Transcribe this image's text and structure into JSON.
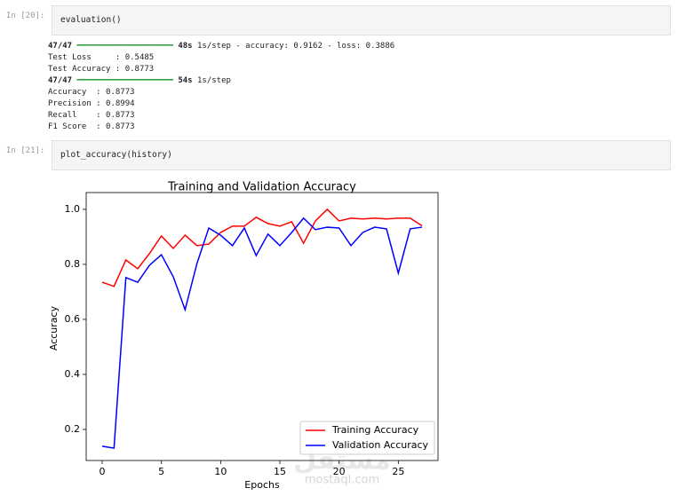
{
  "cells": [
    {
      "prompt": "In [20]:",
      "code": "evaluation()",
      "output": [
        {
          "count": "47/47",
          "bar": "━━━━━━━━━━━━━━━━━━━━",
          "time": "48s",
          "rest": "1s/step - accuracy: 0.9162 - loss: 0.3886"
        },
        "Test Loss     : 0.5485",
        "Test Accuracy : 0.8773",
        {
          "count": "47/47",
          "bar": "━━━━━━━━━━━━━━━━━━━━",
          "time": "54s",
          "rest": "1s/step"
        },
        "Accuracy  : 0.8773",
        "Precision : 0.8994",
        "Recall    : 0.8773",
        "F1 Score  : 0.8773"
      ]
    },
    {
      "prompt": "In [21]:",
      "code": "plot_accuracy(history)"
    }
  ],
  "watermark": {
    "arabic": "مستقل",
    "latin": "mostaql.com"
  },
  "chart_data": {
    "type": "line",
    "title": "Training and Validation Accuracy",
    "x_label": "Epochs",
    "y_label": "Accuracy",
    "x": [
      0,
      1,
      2,
      3,
      4,
      5,
      6,
      7,
      8,
      9,
      10,
      11,
      12,
      13,
      14,
      15,
      16,
      17,
      18,
      19,
      20,
      21,
      22,
      23,
      24,
      25,
      26,
      27
    ],
    "series": [
      {
        "name": "Training Accuracy",
        "color": "#ff0000",
        "values": [
          0.735,
          0.72,
          0.816,
          0.784,
          0.84,
          0.903,
          0.858,
          0.906,
          0.868,
          0.874,
          0.916,
          0.939,
          0.939,
          0.971,
          0.948,
          0.939,
          0.955,
          0.877,
          0.958,
          1.0,
          0.958,
          0.968,
          0.965,
          0.968,
          0.965,
          0.968,
          0.968,
          0.94
        ]
      },
      {
        "name": "Validation Accuracy",
        "color": "#0000ff",
        "values": [
          0.139,
          0.132,
          0.752,
          0.735,
          0.797,
          0.835,
          0.755,
          0.635,
          0.803,
          0.932,
          0.906,
          0.868,
          0.932,
          0.832,
          0.91,
          0.868,
          0.916,
          0.968,
          0.926,
          0.935,
          0.932,
          0.868,
          0.916,
          0.935,
          0.929,
          0.768,
          0.929,
          0.935
        ]
      }
    ],
    "xlim": [
      -1.35,
      28.35
    ],
    "xticks": [
      0,
      5,
      10,
      15,
      20,
      25
    ],
    "ylim": [
      0.087,
      1.061
    ],
    "yticks": [
      {
        "value": 0.2,
        "label": "0.2"
      },
      {
        "value": 0.4,
        "label": "0.4"
      },
      {
        "value": 0.6,
        "label": "0.6"
      },
      {
        "value": 0.8,
        "label": "0.8"
      },
      {
        "value": 1.0,
        "label": "1.0"
      }
    ],
    "legend": "lower right",
    "grid": false
  }
}
